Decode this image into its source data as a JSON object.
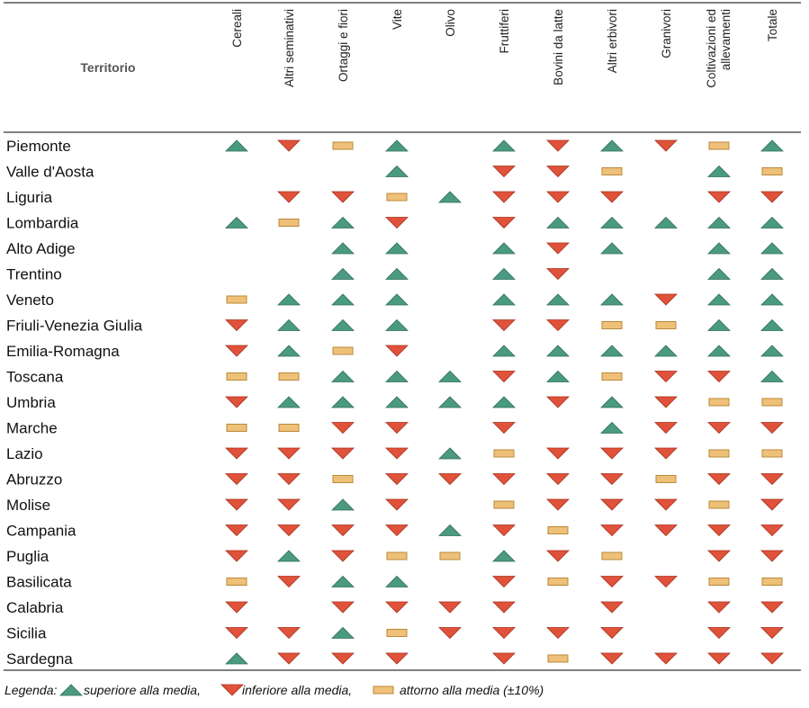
{
  "chart_data": {
    "type": "table",
    "row_header": "Territorio",
    "columns": [
      "Cereali",
      "Altri seminativi",
      "Ortaggi e fiori",
      "Vite",
      "Olivo",
      "Fruttiferi",
      "Bovini da latte",
      "Altri erbivori",
      "Granivori",
      "Coltivazioni ed allevamenti",
      "Totale"
    ],
    "symbol_key": {
      "U": "up-triangle",
      "D": "down-triangle",
      "A": "around-bar",
      "": "none"
    },
    "colors": {
      "up": "#4a9a82",
      "down": "#e0523a",
      "around": "#efc078",
      "around_border": "#b98a3a"
    },
    "rows": [
      {
        "name": "Piemonte",
        "values": [
          "U",
          "D",
          "A",
          "U",
          "",
          "U",
          "D",
          "U",
          "D",
          "A",
          "U"
        ]
      },
      {
        "name": "Valle d'Aosta",
        "values": [
          "",
          "",
          "",
          "U",
          "",
          "D",
          "D",
          "A",
          "",
          "U",
          "A"
        ]
      },
      {
        "name": "Liguria",
        "values": [
          "",
          "D",
          "D",
          "A",
          "U",
          "D",
          "D",
          "D",
          "",
          "D",
          "D"
        ]
      },
      {
        "name": "Lombardia",
        "values": [
          "U",
          "A",
          "U",
          "D",
          "",
          "D",
          "U",
          "U",
          "U",
          "U",
          "U"
        ]
      },
      {
        "name": "Alto Adige",
        "values": [
          "",
          "",
          "U",
          "U",
          "",
          "U",
          "D",
          "U",
          "",
          "U",
          "U"
        ]
      },
      {
        "name": "Trentino",
        "values": [
          "",
          "",
          "U",
          "U",
          "",
          "U",
          "D",
          "",
          "",
          "U",
          "U"
        ]
      },
      {
        "name": "Veneto",
        "values": [
          "A",
          "U",
          "U",
          "U",
          "",
          "U",
          "U",
          "U",
          "D",
          "U",
          "U"
        ]
      },
      {
        "name": "Friuli-Venezia Giulia",
        "values": [
          "D",
          "U",
          "U",
          "U",
          "",
          "D",
          "D",
          "A",
          "A",
          "U",
          "U"
        ]
      },
      {
        "name": "Emilia-Romagna",
        "values": [
          "D",
          "U",
          "A",
          "D",
          "",
          "U",
          "U",
          "U",
          "U",
          "U",
          "U"
        ]
      },
      {
        "name": "Toscana",
        "values": [
          "A",
          "A",
          "U",
          "U",
          "U",
          "D",
          "U",
          "A",
          "D",
          "D",
          "U"
        ]
      },
      {
        "name": "Umbria",
        "values": [
          "D",
          "U",
          "U",
          "U",
          "U",
          "U",
          "D",
          "U",
          "D",
          "A",
          "A"
        ]
      },
      {
        "name": "Marche",
        "values": [
          "A",
          "A",
          "D",
          "D",
          "",
          "D",
          "",
          "U",
          "D",
          "D",
          "D"
        ]
      },
      {
        "name": "Lazio",
        "values": [
          "D",
          "D",
          "D",
          "D",
          "U",
          "A",
          "D",
          "D",
          "D",
          "A",
          "A"
        ]
      },
      {
        "name": "Abruzzo",
        "values": [
          "D",
          "D",
          "A",
          "D",
          "D",
          "D",
          "D",
          "D",
          "A",
          "D",
          "D"
        ]
      },
      {
        "name": "Molise",
        "values": [
          "D",
          "D",
          "U",
          "D",
          "",
          "A",
          "D",
          "D",
          "D",
          "A",
          "D"
        ]
      },
      {
        "name": "Campania",
        "values": [
          "D",
          "D",
          "D",
          "D",
          "U",
          "D",
          "A",
          "D",
          "D",
          "D",
          "D"
        ]
      },
      {
        "name": "Puglia",
        "values": [
          "D",
          "U",
          "D",
          "A",
          "A",
          "U",
          "D",
          "A",
          "",
          "D",
          "D"
        ]
      },
      {
        "name": "Basilicata",
        "values": [
          "A",
          "D",
          "U",
          "U",
          "",
          "D",
          "A",
          "D",
          "D",
          "A",
          "A"
        ]
      },
      {
        "name": "Calabria",
        "values": [
          "D",
          "",
          "D",
          "D",
          "D",
          "D",
          "",
          "D",
          "",
          "D",
          "D"
        ]
      },
      {
        "name": "Sicilia",
        "values": [
          "D",
          "D",
          "U",
          "A",
          "D",
          "D",
          "D",
          "D",
          "",
          "D",
          "D"
        ]
      },
      {
        "name": "Sardegna",
        "values": [
          "U",
          "D",
          "D",
          "D",
          "",
          "D",
          "A",
          "D",
          "D",
          "D",
          "D"
        ]
      }
    ],
    "legend": {
      "prefix": "Legenda:",
      "up": "superiore alla media,",
      "down": "inferiore alla media,",
      "around": "attorno alla media (±10%)"
    }
  }
}
